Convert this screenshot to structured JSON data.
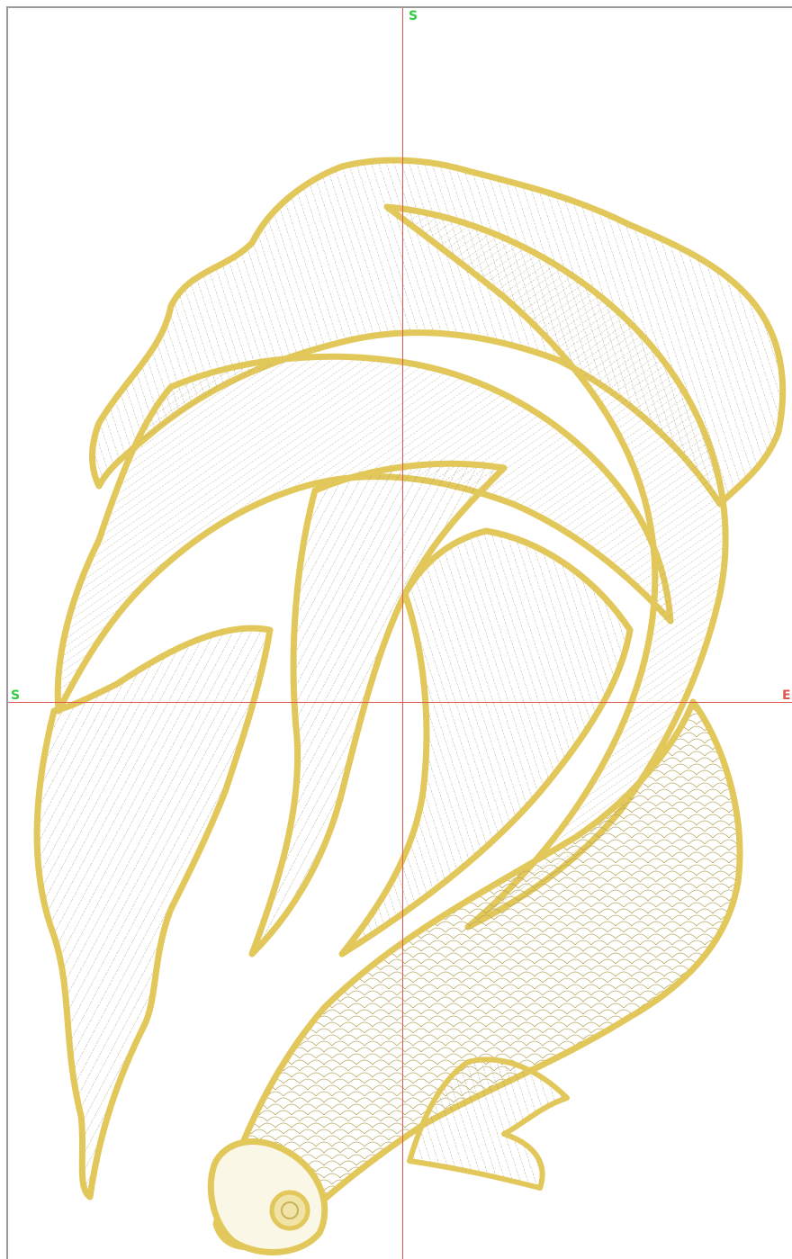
{
  "canvas": {
    "marker_top": "S",
    "marker_left": "S",
    "marker_right": "E",
    "design_name_icon": "betta-fish-embroidery",
    "colors": {
      "thread_gold": "#e2c75a",
      "thread_light": "#ece2b0",
      "stitch_dark": "#6f6a4f",
      "axis_red": "#e0554f",
      "marker_green": "#2ecc40",
      "border_gray": "#9a9a9a"
    }
  }
}
